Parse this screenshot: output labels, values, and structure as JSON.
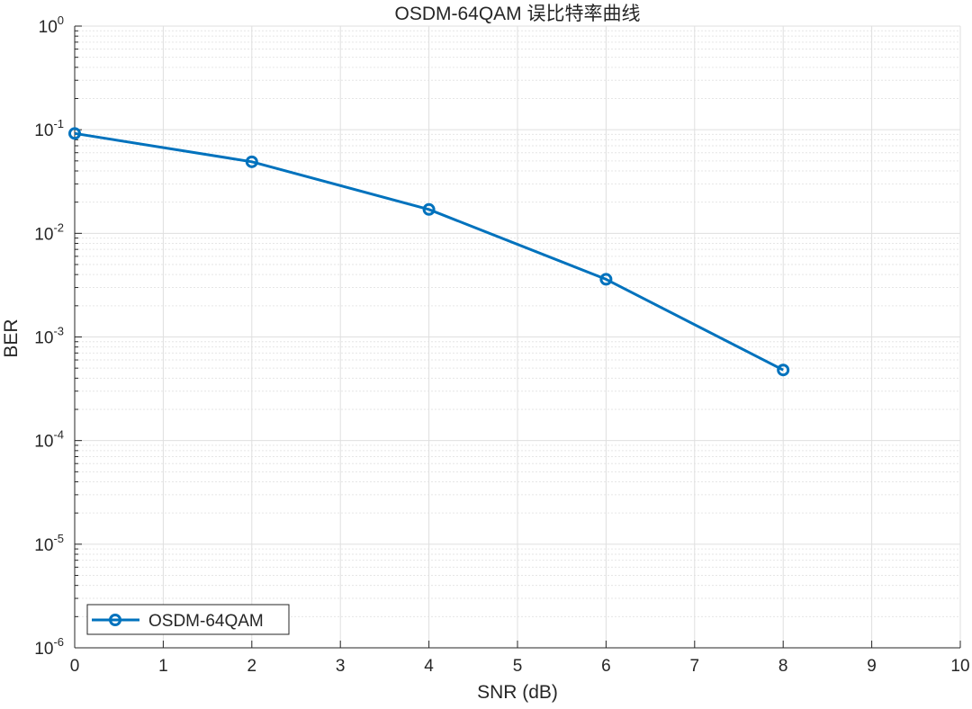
{
  "chart_data": {
    "type": "line",
    "title": "OSDM-64QAM 误比特率曲线",
    "xlabel": "SNR (dB)",
    "ylabel": "BER",
    "xlim": [
      0,
      10
    ],
    "ylim": [
      1e-06,
      1
    ],
    "yscale": "log",
    "grid": true,
    "minor_grid": true,
    "legend_position": "bottom-left",
    "x_ticks": [
      "0",
      "1",
      "2",
      "3",
      "4",
      "5",
      "6",
      "7",
      "8",
      "9",
      "10"
    ],
    "y_ticks": [
      {
        "base": "10",
        "exp": "0"
      },
      {
        "base": "10",
        "exp": "-1"
      },
      {
        "base": "10",
        "exp": "-2"
      },
      {
        "base": "10",
        "exp": "-3"
      },
      {
        "base": "10",
        "exp": "-4"
      },
      {
        "base": "10",
        "exp": "-5"
      },
      {
        "base": "10",
        "exp": "-6"
      }
    ],
    "series": [
      {
        "name": "OSDM-64QAM",
        "color": "#0072BD",
        "marker": "circle",
        "x": [
          0,
          2,
          4,
          6,
          8
        ],
        "y": [
          0.092,
          0.049,
          0.017,
          0.0036,
          0.00048
        ]
      }
    ]
  }
}
